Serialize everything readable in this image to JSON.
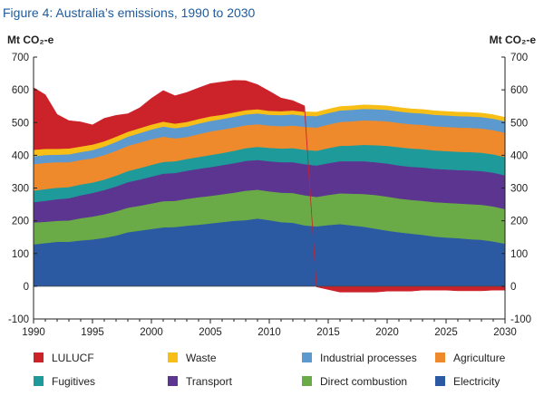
{
  "figure_title": "Figure 4: Australia’s emissions, 1990 to 2030",
  "chart_data": {
    "type": "area",
    "title": "Figure 4: Australia’s emissions, 1990 to 2030",
    "ylabel": "Mt CO₂-e",
    "ylabel_right": "Mt CO₂-e",
    "xlim": [
      1990,
      2030
    ],
    "ylim": [
      -100,
      700
    ],
    "x_ticks": [
      "1990",
      "1995",
      "2000",
      "2005",
      "2010",
      "2015",
      "2020",
      "2025",
      "2030"
    ],
    "y_ticks": [
      "-100",
      "0",
      "100",
      "200",
      "300",
      "400",
      "500",
      "600",
      "700"
    ],
    "x": [
      1990,
      1991,
      1992,
      1993,
      1994,
      1995,
      1996,
      1997,
      1998,
      1999,
      2000,
      2001,
      2002,
      2003,
      2004,
      2005,
      2006,
      2007,
      2008,
      2009,
      2010,
      2011,
      2012,
      2013,
      2014,
      2015,
      2016,
      2017,
      2018,
      2019,
      2020,
      2021,
      2022,
      2023,
      2024,
      2025,
      2026,
      2027,
      2028,
      2029,
      2030
    ],
    "legend_position": "bottom",
    "series": [
      {
        "name": "Electricity",
        "color": "#2b5aa2",
        "values": [
          128,
          132,
          136,
          136,
          140,
          143,
          148,
          155,
          165,
          170,
          175,
          180,
          181,
          185,
          188,
          192,
          196,
          200,
          202,
          207,
          202,
          196,
          194,
          186,
          183,
          187,
          190,
          186,
          182,
          176,
          170,
          165,
          161,
          157,
          152,
          149,
          147,
          144,
          142,
          137,
          130
        ]
      },
      {
        "name": "Direct combustion",
        "color": "#6aaa47",
        "values": [
          67,
          65,
          64,
          65,
          68,
          70,
          72,
          74,
          75,
          76,
          78,
          80,
          80,
          82,
          84,
          84,
          85,
          86,
          90,
          88,
          88,
          90,
          91,
          92,
          90,
          92,
          94,
          97,
          100,
          103,
          104,
          103,
          103,
          104,
          105,
          106,
          106,
          107,
          107,
          107,
          106
        ]
      },
      {
        "name": "Transport",
        "color": "#5b3590",
        "values": [
          62,
          64,
          66,
          68,
          70,
          72,
          74,
          76,
          78,
          80,
          82,
          84,
          85,
          86,
          87,
          88,
          89,
          90,
          91,
          91,
          92,
          93,
          94,
          95,
          96,
          97,
          98,
          99,
          100,
          100,
          101,
          101,
          101,
          102,
          102,
          102,
          102,
          103,
          103,
          103,
          103
        ]
      },
      {
        "name": "Fugitives",
        "color": "#1d9a99",
        "values": [
          35,
          36,
          35,
          34,
          33,
          32,
          32,
          33,
          34,
          35,
          36,
          36,
          36,
          36,
          36,
          37,
          37,
          38,
          39,
          40,
          41,
          42,
          43,
          44,
          45,
          46,
          47,
          48,
          50,
          52,
          54,
          56,
          56,
          56,
          56,
          56,
          56,
          56,
          56,
          56,
          56
        ]
      },
      {
        "name": "Agriculture",
        "color": "#ef8a2c",
        "values": [
          81,
          80,
          78,
          76,
          75,
          74,
          75,
          76,
          77,
          78,
          78,
          77,
          70,
          67,
          70,
          72,
          72,
          71,
          70,
          69,
          68,
          68,
          69,
          70,
          71,
          72,
          73,
          74,
          75,
          75,
          75,
          74,
          74,
          74,
          74,
          74,
          74,
          74,
          74,
          74,
          74
        ]
      },
      {
        "name": "Industrial processes",
        "color": "#5b99cf",
        "values": [
          24,
          24,
          23,
          24,
          24,
          25,
          26,
          27,
          28,
          29,
          30,
          31,
          31,
          32,
          32,
          32,
          32,
          33,
          33,
          33,
          33,
          34,
          34,
          34,
          35,
          35,
          35,
          35,
          35,
          35,
          35,
          35,
          35,
          35,
          35,
          35,
          35,
          35,
          35,
          35,
          35
        ]
      },
      {
        "name": "Waste",
        "color": "#f7be16",
        "values": [
          20,
          19,
          18,
          18,
          17,
          17,
          16,
          16,
          15,
          15,
          15,
          15,
          14,
          14,
          14,
          14,
          13,
          13,
          13,
          13,
          12,
          12,
          12,
          12,
          12,
          12,
          12,
          12,
          12,
          12,
          12,
          12,
          12,
          12,
          12,
          12,
          12,
          12,
          12,
          12,
          12
        ]
      },
      {
        "name": "LULUCF",
        "color": "#cc2229",
        "values": [
          190,
          165,
          105,
          85,
          75,
          60,
          70,
          65,
          55,
          62,
          80,
          95,
          85,
          90,
          95,
          100,
          100,
          98,
          90,
          75,
          60,
          40,
          30,
          18,
          -2,
          -10,
          -18,
          -18,
          -18,
          -18,
          -15,
          -15,
          -15,
          -12,
          -12,
          -12,
          -14,
          -14,
          -14,
          -12,
          -12
        ]
      }
    ]
  },
  "legend_rows": [
    [
      "LULUCF",
      "Waste",
      "Industrial processes",
      "Agriculture"
    ],
    [
      "Fugitives",
      "Transport",
      "Direct combustion",
      "Electricity"
    ]
  ]
}
